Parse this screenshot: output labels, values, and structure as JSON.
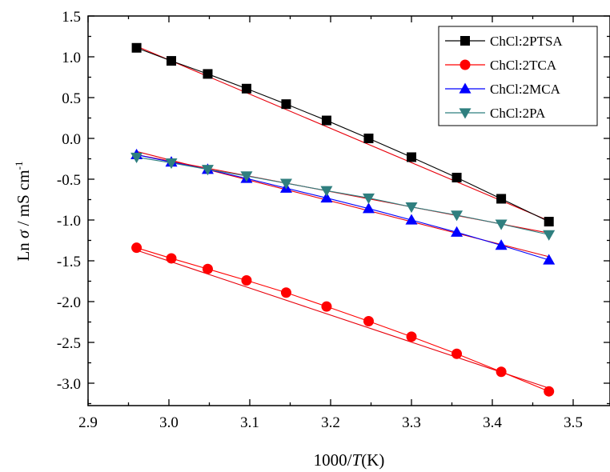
{
  "chart_data": {
    "type": "scatter",
    "xlabel_prefix": "1000/",
    "xlabel_var": "T",
    "xlabel_suffix": "(K)",
    "ylabel_prefix": "Ln ",
    "ylabel_var": "σ",
    "ylabel_suffix": " / mS cm",
    "ylabel_sup": "-1",
    "xlim": [
      2.9,
      3.55
    ],
    "ylim": [
      -3.25,
      1.5
    ],
    "xticks": [
      "2.9",
      "3.0",
      "3.1",
      "3.2",
      "3.3",
      "3.4",
      "3.5"
    ],
    "yticks": [
      "1.5",
      "1.0",
      "0.5",
      "0.0",
      "-0.5",
      "-1.0",
      "-1.5",
      "-2.0",
      "-2.5",
      "-3.0"
    ],
    "legend_position": "top-right",
    "x": [
      2.96,
      3.003,
      3.048,
      3.096,
      3.145,
      3.195,
      3.247,
      3.3,
      3.356,
      3.411,
      3.47
    ],
    "series": [
      {
        "name": "ChCl:2PTSA",
        "marker": "square",
        "color": "#000000",
        "fit_color": "#e8000b",
        "values": [
          1.11,
          0.95,
          0.79,
          0.61,
          0.42,
          0.22,
          0.0,
          -0.23,
          -0.48,
          -0.74,
          -1.02
        ],
        "fit": [
          1.13,
          -1.01
        ]
      },
      {
        "name": "ChCl:2TCA",
        "marker": "circle",
        "color": "#ff0000",
        "fit_color": "#e8000b",
        "values": [
          -1.34,
          -1.47,
          -1.6,
          -1.74,
          -1.89,
          -2.06,
          -2.24,
          -2.43,
          -2.64,
          -2.86,
          -3.1
        ],
        "fit": [
          -1.37,
          -3.06
        ]
      },
      {
        "name": "ChCl:2MCA",
        "marker": "triangle-up",
        "color": "#0000ff",
        "fit_color": "#e8000b",
        "values": [
          -0.2,
          -0.29,
          -0.38,
          -0.49,
          -0.61,
          -0.73,
          -0.86,
          -1.0,
          -1.15,
          -1.31,
          -1.49
        ],
        "fit": [
          -0.16,
          -1.45
        ]
      },
      {
        "name": "ChCl:2PA",
        "marker": "triangle-down",
        "color": "#2f7f7f",
        "fit_color": "#e8000b",
        "values": [
          -0.23,
          -0.3,
          -0.38,
          -0.46,
          -0.55,
          -0.64,
          -0.73,
          -0.84,
          -0.94,
          -1.05,
          -1.18
        ],
        "fit": [
          -0.2,
          -1.16
        ]
      }
    ]
  }
}
